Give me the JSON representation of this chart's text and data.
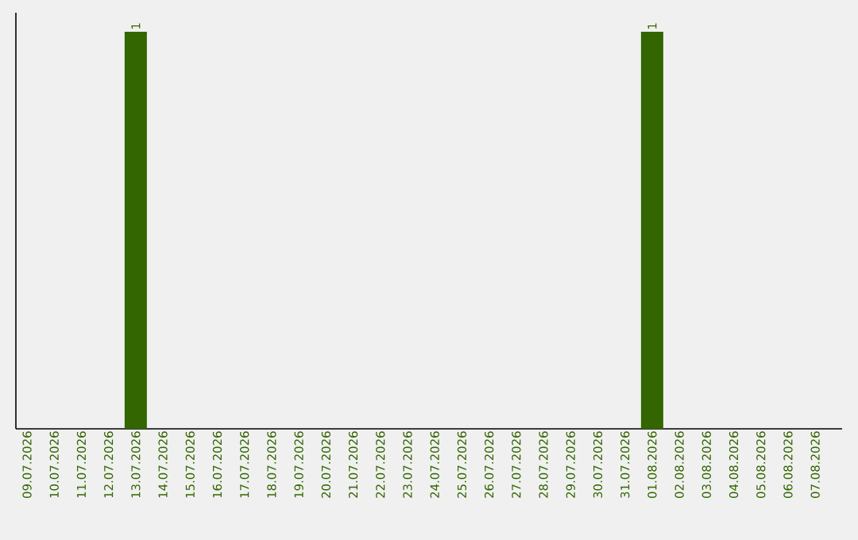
{
  "chart_data": {
    "type": "bar",
    "categories": [
      "09.07.2026",
      "10.07.2026",
      "11.07.2026",
      "12.07.2026",
      "13.07.2026",
      "14.07.2026",
      "15.07.2026",
      "16.07.2026",
      "17.07.2026",
      "18.07.2026",
      "19.07.2026",
      "20.07.2026",
      "21.07.2026",
      "22.07.2026",
      "23.07.2026",
      "24.07.2026",
      "25.07.2026",
      "26.07.2026",
      "27.07.2026",
      "28.07.2026",
      "29.07.2026",
      "30.07.2026",
      "31.07.2026",
      "01.08.2026",
      "02.08.2026",
      "03.08.2026",
      "04.08.2026",
      "05.08.2026",
      "06.08.2026",
      "07.08.2026"
    ],
    "values": [
      0,
      0,
      0,
      0,
      1,
      0,
      0,
      0,
      0,
      0,
      0,
      0,
      0,
      0,
      0,
      0,
      0,
      0,
      0,
      0,
      0,
      0,
      0,
      1,
      0,
      0,
      0,
      0,
      0,
      0
    ],
    "value_labels": [
      null,
      null,
      null,
      null,
      "1",
      null,
      null,
      null,
      null,
      null,
      null,
      null,
      null,
      null,
      null,
      null,
      null,
      null,
      null,
      null,
      null,
      null,
      null,
      "1",
      null,
      null,
      null,
      null,
      null,
      null
    ],
    "color": "#336600",
    "tick_labels": "x",
    "grid": false
  }
}
